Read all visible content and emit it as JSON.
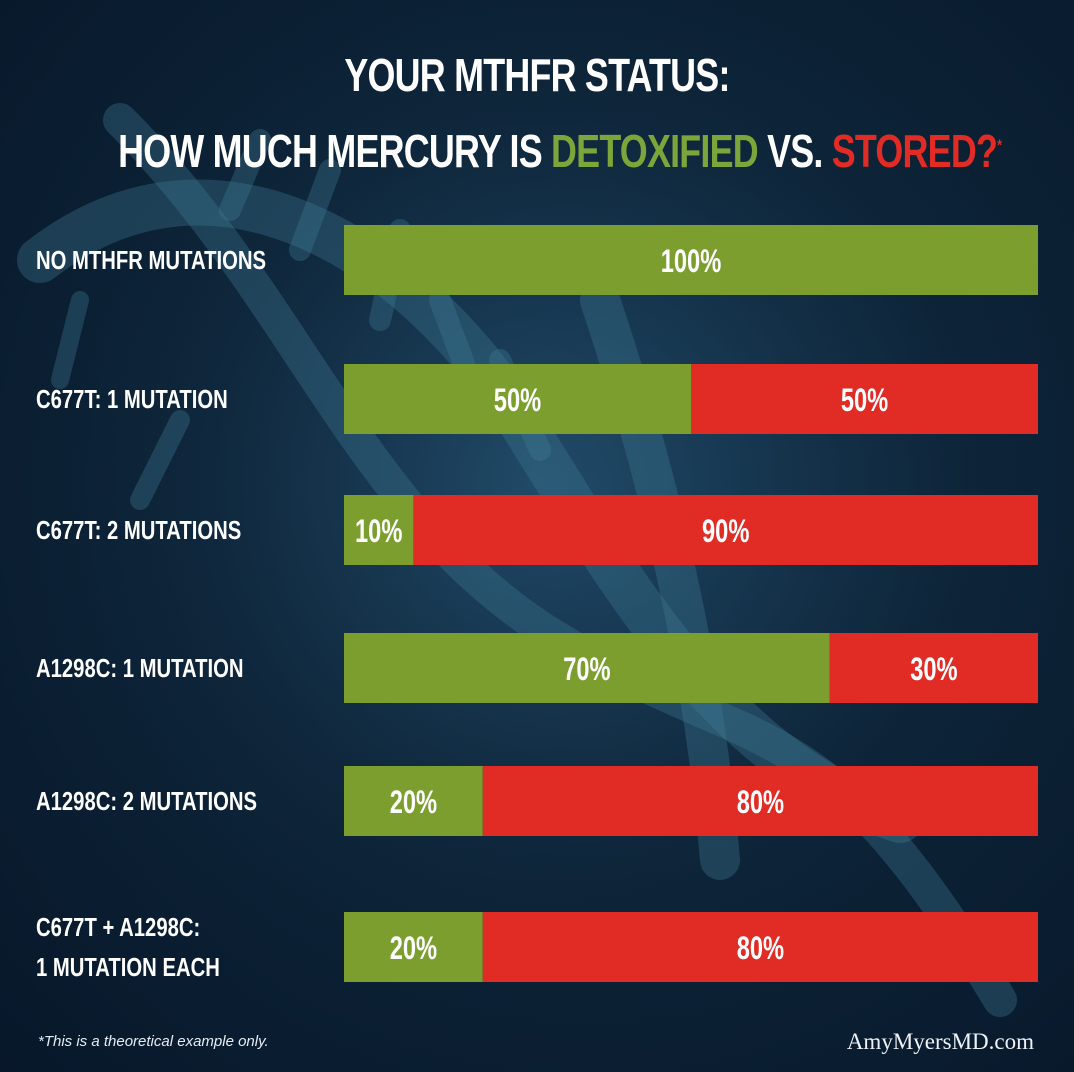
{
  "title": {
    "line1": "YOUR MTHFR STATUS:",
    "line2_prefix": "HOW MUCH MERCURY IS ",
    "line2_green": "DETOXIFIED",
    "line2_mid": " VS. ",
    "line2_red": "STORED?",
    "line2_star": "*"
  },
  "colors": {
    "detoxified": "#7b9e2f",
    "stored": "#e02c25",
    "text": "#ffffff",
    "background": "#0d2438"
  },
  "chart_data": {
    "type": "bar",
    "orientation": "horizontal",
    "stacked": true,
    "percent_scale": [
      0,
      100
    ],
    "categories": [
      [
        "NO MTHFR MUTATIONS"
      ],
      [
        "C677T: 1 MUTATION"
      ],
      [
        "C677T: 2 MUTATIONS"
      ],
      [
        "A1298C: 1 MUTATION"
      ],
      [
        "A1298C: 2 MUTATIONS"
      ],
      [
        "C677T + A1298C:",
        "1 MUTATION EACH"
      ]
    ],
    "series": [
      {
        "name": "DETOXIFIED",
        "color": "#7b9e2f",
        "values": [
          100,
          50,
          10,
          70,
          20,
          20
        ],
        "labels": [
          "100%",
          "50%",
          "10%",
          "70%",
          "20%",
          "20%"
        ]
      },
      {
        "name": "STORED",
        "color": "#e02c25",
        "values": [
          0,
          50,
          90,
          30,
          80,
          80
        ],
        "labels": [
          "",
          "50%",
          "90%",
          "30%",
          "80%",
          "80%"
        ]
      }
    ]
  },
  "footnote": "*This is a theoretical example only.",
  "source": "AmyMyersMD.com"
}
